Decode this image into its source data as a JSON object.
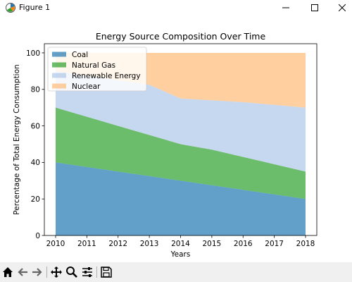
{
  "window": {
    "title": "Figure 1",
    "icon": "matplotlib-figure-icon",
    "controls": [
      "minimize-icon",
      "maximize-icon",
      "close-icon"
    ]
  },
  "toolbar": {
    "buttons": [
      "home-icon",
      "back-arrow-icon",
      "forward-arrow-icon",
      "pan-move-icon",
      "zoom-magnifier-icon",
      "configure-subplots-icon",
      "save-icon"
    ]
  },
  "chart_data": {
    "type": "area",
    "stacked": true,
    "title": "Energy Source Composition Over Time",
    "xlabel": "Years",
    "ylabel": "Percentage of Total Energy Consumption",
    "x": [
      2010,
      2011,
      2012,
      2013,
      2014,
      2015,
      2016,
      2017,
      2018
    ],
    "x_ticks": [
      "2010",
      "2011",
      "2012",
      "2013",
      "2014",
      "2015",
      "2016",
      "2017",
      "2018"
    ],
    "y_ticks": [
      "0",
      "20",
      "40",
      "60",
      "80",
      "100"
    ],
    "ylim": [
      0,
      105
    ],
    "grid": false,
    "legend_position": "upper left",
    "series": [
      {
        "name": "Coal",
        "color": "#1f77b4",
        "values": [
          40,
          37.5,
          35,
          32.5,
          30,
          27.5,
          25,
          22.5,
          20
        ]
      },
      {
        "name": "Natural Gas",
        "color": "#2ca02c",
        "values": [
          30,
          27.5,
          25,
          22.5,
          20,
          19.5,
          18,
          16.5,
          15
        ]
      },
      {
        "name": "Renewable Energy",
        "color": "#aec7e8",
        "values": [
          20,
          22.5,
          25,
          27.5,
          25,
          27,
          30,
          32.5,
          35
        ]
      },
      {
        "name": "Nuclear",
        "color": "#ffbb78",
        "values": [
          10,
          12.5,
          15,
          17.5,
          25,
          26,
          27,
          28.5,
          30
        ]
      }
    ]
  }
}
